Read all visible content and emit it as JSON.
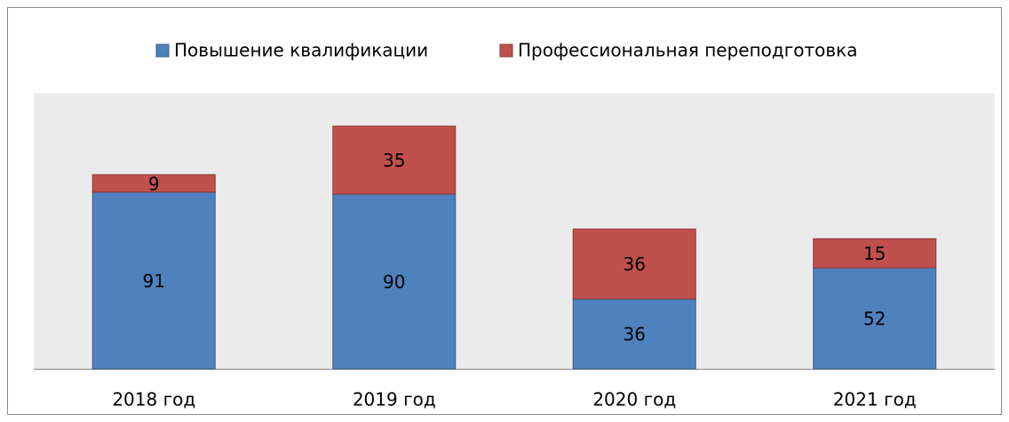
{
  "chart_data": {
    "type": "stacked_bar",
    "categories": [
      "2018 год",
      "2019 год",
      "2020 год",
      "2021 год"
    ],
    "series": [
      {
        "name": "Повышение квалификации",
        "color": "#4f81bd",
        "values": [
          91,
          90,
          36,
          52
        ]
      },
      {
        "name": "Профессиональная переподготовка",
        "color": "#c0504d",
        "values": [
          9,
          35,
          36,
          15
        ]
      }
    ],
    "ylim": [
      0,
      142
    ]
  }
}
